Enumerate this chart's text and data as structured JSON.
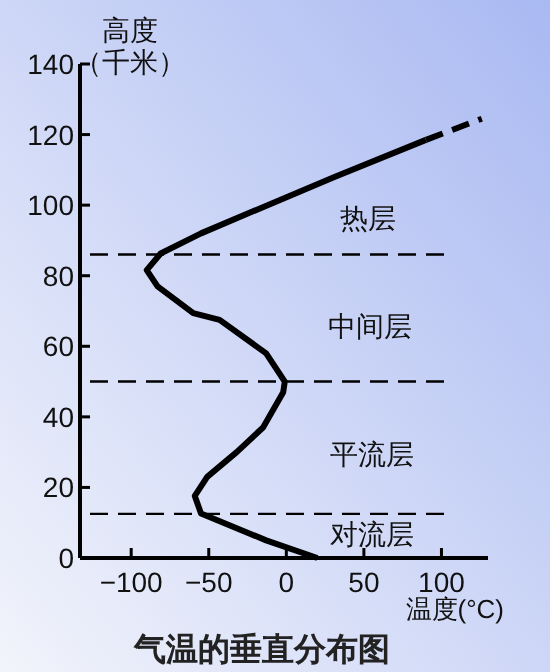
{
  "chart_data": {
    "type": "line",
    "title": "气温的垂直分布图",
    "xlabel": "温度(°C)",
    "ylabel": "高度（千米）",
    "xlim": [
      -133,
      130
    ],
    "ylim": [
      0,
      140
    ],
    "xticks": [
      -100,
      -50,
      0,
      50,
      100
    ],
    "yticks": [
      0,
      20,
      40,
      60,
      80,
      100,
      120,
      140
    ],
    "grid": false,
    "marker": "none",
    "series": [
      {
        "color": "#000000",
        "line_style": "solid",
        "x": [
          20,
          -13,
          -55,
          -59,
          -51,
          -32,
          -15,
          -2,
          -1,
          -13,
          -43,
          -60,
          -83,
          -90,
          -81,
          -55,
          31,
          90
        ],
        "values": [
          0,
          5,
          12.6,
          17.6,
          23,
          30,
          37,
          47,
          50,
          58,
          67.5,
          69.4,
          77,
          81.6,
          86.3,
          92,
          108,
          118.5
        ]
      },
      {
        "color": "#000000",
        "line_style": "dashed",
        "x": [
          90,
          126
        ],
        "values": [
          118.5,
          124.5
        ]
      }
    ],
    "ref_lines": [
      {
        "axis": "y",
        "value": 12.5,
        "label": null,
        "line_style": "dashed",
        "color": "#000000"
      },
      {
        "axis": "y",
        "value": 50,
        "label": null,
        "line_style": "dashed",
        "color": "#000000"
      },
      {
        "axis": "y",
        "value": 86,
        "label": null,
        "line_style": "dashed",
        "color": "#000000"
      }
    ],
    "annotations": [
      "热层",
      "中间层",
      "平流层",
      "对流层"
    ]
  }
}
